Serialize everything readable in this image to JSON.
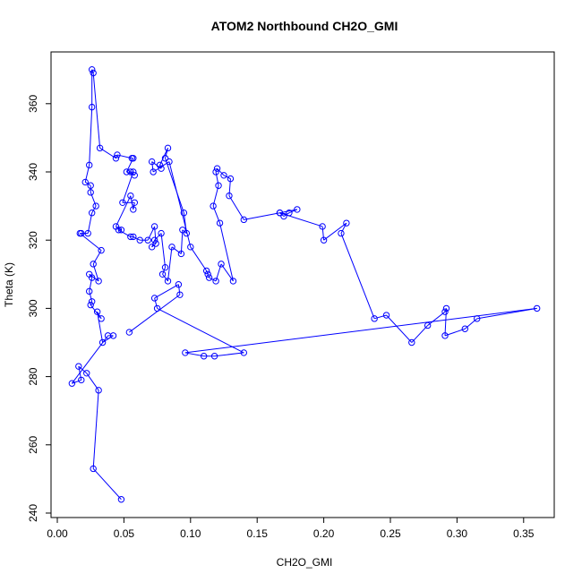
{
  "chart_data": {
    "type": "scatter",
    "title": "ATOM2 Northbound CH2O_GMI",
    "xlabel": "CH2O_GMI",
    "ylabel": "Theta (K)",
    "xlim": [
      0.0,
      0.37
    ],
    "ylim": [
      238,
      373
    ],
    "x_ticks": [
      "0.00",
      "0.05",
      "0.10",
      "0.15",
      "0.20",
      "0.25",
      "0.30",
      "0.35"
    ],
    "y_ticks": [
      "240",
      "260",
      "280",
      "300",
      "320",
      "340",
      "360"
    ],
    "grid": false,
    "legend": "none",
    "marker": "open-circle",
    "connected": true,
    "series_color": "#0000ff",
    "points": [
      [
        0.048,
        244
      ],
      [
        0.027,
        253
      ],
      [
        0.031,
        276
      ],
      [
        0.022,
        281
      ],
      [
        0.016,
        283
      ],
      [
        0.018,
        279
      ],
      [
        0.011,
        278
      ],
      [
        0.038,
        292
      ],
      [
        0.042,
        292
      ],
      [
        0.034,
        290
      ],
      [
        0.03,
        299
      ],
      [
        0.033,
        297
      ],
      [
        0.025,
        301
      ],
      [
        0.026,
        302
      ],
      [
        0.024,
        305
      ],
      [
        0.026,
        309
      ],
      [
        0.024,
        310
      ],
      [
        0.031,
        308
      ],
      [
        0.027,
        313
      ],
      [
        0.033,
        317
      ],
      [
        0.017,
        322
      ],
      [
        0.018,
        322
      ],
      [
        0.023,
        322
      ],
      [
        0.026,
        328
      ],
      [
        0.029,
        330
      ],
      [
        0.025,
        334
      ],
      [
        0.025,
        336
      ],
      [
        0.021,
        337
      ],
      [
        0.024,
        342
      ],
      [
        0.026,
        359
      ],
      [
        0.026,
        370
      ],
      [
        0.027,
        369
      ],
      [
        0.032,
        347
      ],
      [
        0.044,
        344
      ],
      [
        0.045,
        345
      ],
      [
        0.056,
        344
      ],
      [
        0.057,
        344
      ],
      [
        0.052,
        340
      ],
      [
        0.058,
        339
      ],
      [
        0.055,
        340
      ],
      [
        0.057,
        340
      ],
      [
        0.049,
        331
      ],
      [
        0.058,
        331
      ],
      [
        0.057,
        329
      ],
      [
        0.055,
        333
      ],
      [
        0.044,
        324
      ],
      [
        0.048,
        323
      ],
      [
        0.046,
        323
      ],
      [
        0.055,
        321
      ],
      [
        0.057,
        321
      ],
      [
        0.062,
        320
      ],
      [
        0.068,
        320
      ],
      [
        0.073,
        324
      ],
      [
        0.074,
        319
      ],
      [
        0.071,
        318
      ],
      [
        0.073,
        320
      ],
      [
        0.078,
        322
      ],
      [
        0.081,
        312
      ],
      [
        0.079,
        310
      ],
      [
        0.083,
        308
      ],
      [
        0.086,
        318
      ],
      [
        0.093,
        316
      ],
      [
        0.094,
        323
      ],
      [
        0.097,
        322
      ],
      [
        0.095,
        328
      ],
      [
        0.081,
        344
      ],
      [
        0.083,
        347
      ],
      [
        0.077,
        342
      ],
      [
        0.078,
        341
      ],
      [
        0.071,
        343
      ],
      [
        0.072,
        340
      ],
      [
        0.084,
        343
      ],
      [
        0.1,
        318
      ],
      [
        0.112,
        311
      ],
      [
        0.113,
        310
      ],
      [
        0.114,
        309
      ],
      [
        0.119,
        308
      ],
      [
        0.123,
        313
      ],
      [
        0.132,
        308
      ],
      [
        0.122,
        325
      ],
      [
        0.117,
        330
      ],
      [
        0.121,
        336
      ],
      [
        0.119,
        340
      ],
      [
        0.12,
        341
      ],
      [
        0.125,
        339
      ],
      [
        0.13,
        338
      ],
      [
        0.129,
        333
      ],
      [
        0.14,
        326
      ],
      [
        0.167,
        328
      ],
      [
        0.17,
        327
      ],
      [
        0.174,
        328
      ],
      [
        0.18,
        329
      ],
      [
        0.167,
        328
      ],
      [
        0.199,
        324
      ],
      [
        0.2,
        320
      ],
      [
        0.217,
        325
      ],
      [
        0.213,
        322
      ],
      [
        0.238,
        297
      ],
      [
        0.247,
        298
      ],
      [
        0.266,
        290
      ],
      [
        0.278,
        295
      ],
      [
        0.291,
        299
      ],
      [
        0.292,
        300
      ],
      [
        0.291,
        292
      ],
      [
        0.306,
        294
      ],
      [
        0.315,
        297
      ],
      [
        0.36,
        300
      ],
      [
        0.096,
        287
      ],
      [
        0.11,
        286
      ],
      [
        0.118,
        286
      ],
      [
        0.14,
        287
      ],
      [
        0.075,
        300
      ],
      [
        0.073,
        303
      ],
      [
        0.091,
        307
      ],
      [
        0.092,
        304
      ],
      [
        0.054,
        293
      ]
    ]
  }
}
